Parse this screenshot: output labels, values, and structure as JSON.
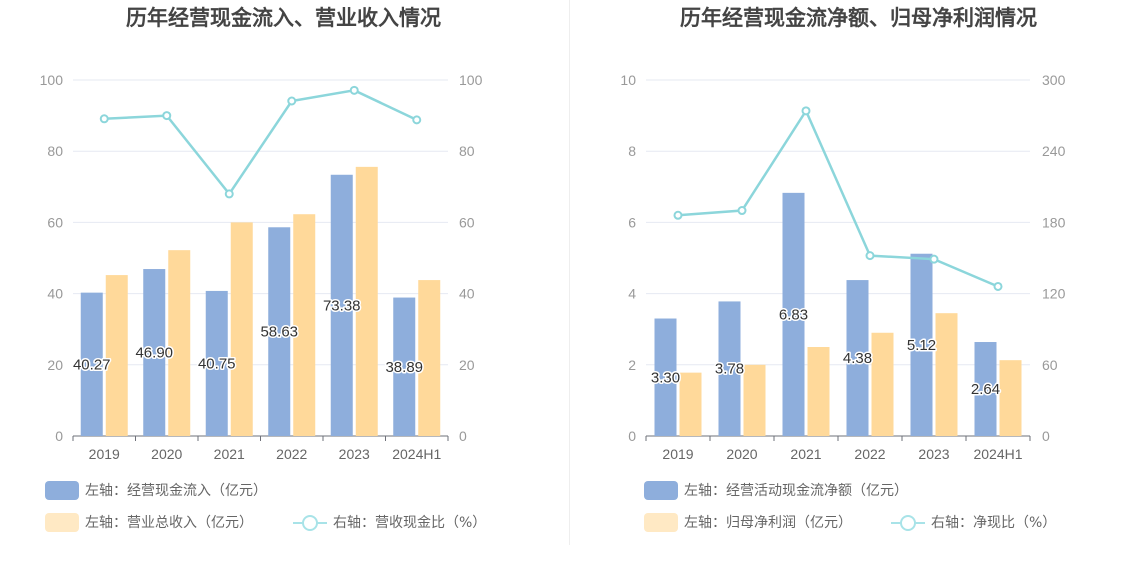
{
  "chart_data": [
    {
      "type": "bar",
      "title": "历年经营现金流入、营业收入情况",
      "categories": [
        "2019",
        "2020",
        "2021",
        "2022",
        "2023",
        "2024H1"
      ],
      "series": [
        {
          "name": "左轴：经营现金流入（亿元）",
          "axis": "left",
          "type": "bar",
          "color": "#8eaedc",
          "values": [
            40.27,
            46.9,
            40.75,
            58.63,
            73.38,
            38.89
          ],
          "labels": [
            "40.27",
            "46.90",
            "40.75",
            "58.63",
            "73.38",
            "38.89"
          ]
        },
        {
          "name": "左轴：营业总收入（亿元）",
          "axis": "left",
          "type": "bar",
          "color": "#ffd99a",
          "values": [
            45.2,
            52.2,
            60.0,
            62.3,
            75.6,
            43.8
          ]
        },
        {
          "name": "右轴：营收现金比（%）",
          "axis": "right",
          "type": "line",
          "color": "#8cd6db",
          "values": [
            89.1,
            90.0,
            68.0,
            94.1,
            97.1,
            88.8
          ]
        }
      ],
      "left_axis": {
        "min": 0,
        "max": 100,
        "ticks": [
          "0",
          "20",
          "40",
          "60",
          "80",
          "100"
        ]
      },
      "right_axis": {
        "min": 0,
        "max": 100,
        "ticks": [
          "0",
          "20",
          "40",
          "60",
          "80",
          "100"
        ]
      },
      "grid": true,
      "legend_position": "bottom-left"
    },
    {
      "type": "bar",
      "title": "历年经营现金流净额、归母净利润情况",
      "categories": [
        "2019",
        "2020",
        "2021",
        "2022",
        "2023",
        "2024H1"
      ],
      "series": [
        {
          "name": "左轴：经营活动现金流净额（亿元）",
          "axis": "left",
          "type": "bar",
          "color": "#8eaedc",
          "values": [
            3.3,
            3.78,
            6.83,
            4.38,
            5.12,
            2.64
          ],
          "labels": [
            "3.30",
            "3.78",
            "6.83",
            "4.38",
            "5.12",
            "2.64"
          ]
        },
        {
          "name": "左轴：归母净利润（亿元）",
          "axis": "left",
          "type": "bar",
          "color": "#ffd99a",
          "values": [
            1.78,
            2.0,
            2.5,
            2.9,
            3.45,
            2.13
          ]
        },
        {
          "name": "右轴：净现比（%）",
          "axis": "right",
          "type": "line",
          "color": "#8cd6db",
          "values": [
            186,
            190,
            274,
            152,
            149,
            126
          ]
        }
      ],
      "left_axis": {
        "min": 0,
        "max": 10,
        "ticks": [
          "0",
          "2",
          "4",
          "6",
          "8",
          "10"
        ]
      },
      "right_axis": {
        "min": 0,
        "max": 300,
        "ticks": [
          "0",
          "60",
          "120",
          "180",
          "240",
          "300"
        ]
      },
      "grid": true,
      "legend_position": "bottom-left"
    }
  ]
}
